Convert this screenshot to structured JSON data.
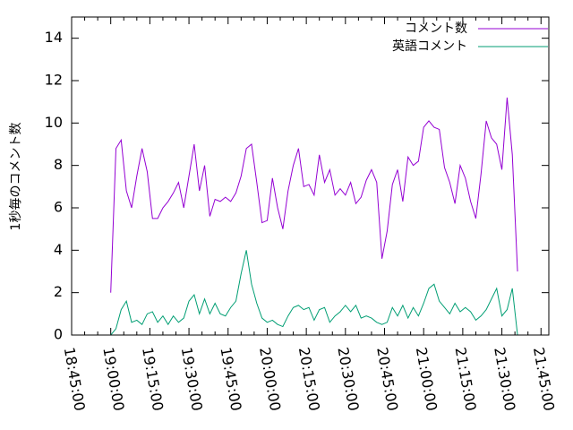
{
  "chart_data": {
    "type": "line",
    "ylabel": "1秒毎のコメント数",
    "x": [
      "19:00:00",
      "19:02:00",
      "19:04:00",
      "19:06:00",
      "19:08:00",
      "19:10:00",
      "19:12:00",
      "19:14:00",
      "19:16:00",
      "19:18:00",
      "19:20:00",
      "19:22:00",
      "19:24:00",
      "19:26:00",
      "19:28:00",
      "19:30:00",
      "19:32:00",
      "19:34:00",
      "19:36:00",
      "19:38:00",
      "19:40:00",
      "19:42:00",
      "19:44:00",
      "19:46:00",
      "19:48:00",
      "19:50:00",
      "19:52:00",
      "19:54:00",
      "19:56:00",
      "19:58:00",
      "20:00:00",
      "20:02:00",
      "20:04:00",
      "20:06:00",
      "20:08:00",
      "20:10:00",
      "20:12:00",
      "20:14:00",
      "20:16:00",
      "20:18:00",
      "20:20:00",
      "20:22:00",
      "20:24:00",
      "20:26:00",
      "20:28:00",
      "20:30:00",
      "20:32:00",
      "20:34:00",
      "20:36:00",
      "20:38:00",
      "20:40:00",
      "20:42:00",
      "20:44:00",
      "20:46:00",
      "20:48:00",
      "20:50:00",
      "20:52:00",
      "20:54:00",
      "20:56:00",
      "20:58:00",
      "21:00:00",
      "21:02:00",
      "21:04:00",
      "21:06:00",
      "21:08:00",
      "21:10:00",
      "21:12:00",
      "21:14:00",
      "21:16:00",
      "21:18:00",
      "21:20:00",
      "21:22:00",
      "21:24:00",
      "21:26:00",
      "21:28:00",
      "21:30:00",
      "21:32:00",
      "21:34:00",
      "21:36:00"
    ],
    "series": [
      {
        "name": "コメント数",
        "color": "#9400d3",
        "values": [
          2,
          8.8,
          9.2,
          6.8,
          6,
          7.5,
          8.8,
          7.7,
          5.5,
          5.5,
          6,
          6.3,
          6.7,
          7.2,
          6,
          7.5,
          9,
          6.8,
          8,
          5.6,
          6.4,
          6.3,
          6.5,
          6.3,
          6.7,
          7.5,
          8.8,
          9,
          7.2,
          5.3,
          5.4,
          7.4,
          6,
          5,
          6.8,
          8,
          8.8,
          7,
          7.1,
          6.6,
          8.5,
          7.2,
          7.8,
          6.6,
          6.9,
          6.6,
          7.2,
          6.2,
          6.5,
          7.3,
          7.8,
          7.2,
          3.6,
          4.9,
          7.1,
          7.8,
          6.3,
          8.4,
          8,
          8.2,
          9.8,
          10.1,
          9.8,
          9.7,
          7.9,
          7.2,
          6.2,
          8,
          7.4,
          6.3,
          5.5,
          7.6,
          10.1,
          9.3,
          9,
          7.8,
          11.2,
          8.5,
          3
        ]
      },
      {
        "name": "英語コメント",
        "color": "#009e73",
        "values": [
          0,
          0.3,
          1.2,
          1.6,
          0.6,
          0.7,
          0.5,
          1,
          1.1,
          0.6,
          0.9,
          0.5,
          0.9,
          0.6,
          0.8,
          1.6,
          1.9,
          1,
          1.7,
          1,
          1.5,
          1,
          0.9,
          1.3,
          1.6,
          2.9,
          4,
          2.4,
          1.5,
          0.8,
          0.6,
          0.7,
          0.5,
          0.4,
          0.9,
          1.3,
          1.4,
          1.2,
          1.3,
          0.7,
          1.2,
          1.3,
          0.6,
          0.9,
          1.1,
          1.4,
          1.1,
          1.4,
          0.8,
          0.9,
          0.8,
          0.6,
          0.5,
          0.6,
          1.3,
          0.9,
          1.4,
          0.8,
          1.3,
          0.9,
          1.5,
          2.2,
          2.4,
          1.6,
          1.3,
          1,
          1.5,
          1.1,
          1.3,
          1.1,
          0.7,
          0.9,
          1.2,
          1.7,
          2.2,
          0.9,
          1.2,
          2.2,
          0
        ]
      }
    ],
    "xlim": [
      "18:45:00",
      "21:48:00"
    ],
    "xticks": [
      "18:45:00",
      "19:00:00",
      "19:15:00",
      "19:30:00",
      "19:45:00",
      "20:00:00",
      "20:15:00",
      "20:30:00",
      "20:45:00",
      "21:00:00",
      "21:15:00",
      "21:30:00",
      "21:45:00"
    ],
    "ylim": [
      0,
      15
    ],
    "yticks": [
      0,
      2,
      4,
      6,
      8,
      10,
      12,
      14
    ],
    "legend": "top-right"
  }
}
